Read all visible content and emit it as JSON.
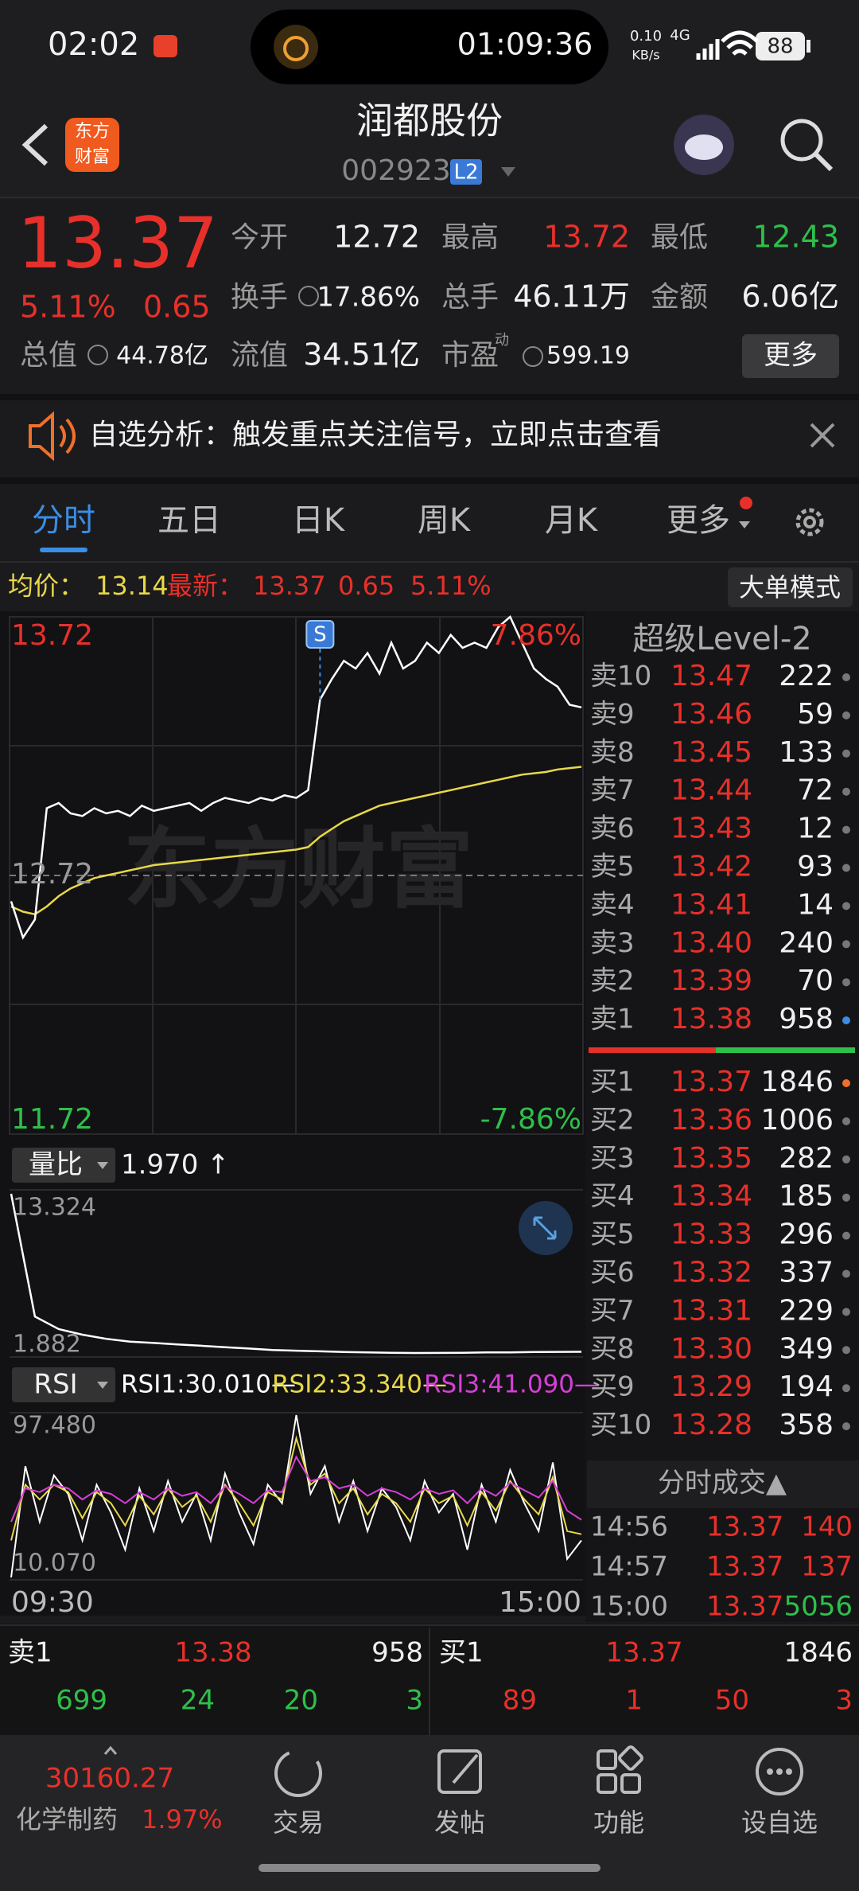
{
  "status_bar": {
    "time": "02:02",
    "timer": "01:09:36",
    "net_speed": "0.10",
    "net_unit": "KB/s",
    "network": "4G",
    "battery": "88"
  },
  "header": {
    "logo": [
      "东方",
      "财富"
    ],
    "title": "润都股份",
    "code": "002923",
    "badge": "L2"
  },
  "quote": {
    "price": "13.37",
    "change_pct": "5.11%",
    "change": "0.65",
    "stats": [
      {
        "label": "今开",
        "value": "12.72"
      },
      {
        "label": "最高",
        "value": "13.72"
      },
      {
        "label": "最低",
        "value": "12.43"
      },
      {
        "label": "换手",
        "value": "17.86%"
      },
      {
        "label": "总手",
        "value": "46.11万"
      },
      {
        "label": "金额",
        "value": "6.06亿"
      },
      {
        "label": "总值",
        "value": "44.78亿"
      },
      {
        "label": "流值",
        "value": "34.51亿"
      },
      {
        "label": "市盈",
        "value": "599.19",
        "superscript": "动"
      }
    ],
    "more_button": "更多"
  },
  "banner": {
    "text": "自选分析：触发重点关注信号，立即点击查看"
  },
  "tabs": [
    "分时",
    "五日",
    "日K",
    "周K",
    "月K",
    "更多"
  ],
  "info_bar": {
    "avg_label": "均价：",
    "avg": "13.14",
    "last_label": "最新：",
    "last": "13.37",
    "change": "0.65",
    "change_pct": "5.11%",
    "mode_button": "大单模式"
  },
  "price_chart": {
    "ylim": [
      11.72,
      13.72
    ],
    "yticks": [
      {
        "value": 13.72,
        "label": "13.72"
      },
      {
        "value": 12.72,
        "label": "12.72"
      },
      {
        "value": 11.72,
        "label": "11.72"
      }
    ],
    "pct_labels": [
      "7.86%",
      "-7.86%"
    ],
    "watermark": "东方财富",
    "signal_marker": "S",
    "price_color": "#ffffff",
    "avg_color": "#e8d84a",
    "price": [
      12.62,
      12.48,
      12.55,
      12.98,
      13.0,
      12.96,
      12.95,
      12.98,
      12.96,
      12.97,
      12.95,
      12.99,
      12.97,
      12.98,
      12.99,
      13.0,
      12.97,
      13.0,
      13.02,
      13.01,
      13.0,
      13.02,
      13.01,
      13.03,
      13.02,
      13.05,
      13.4,
      13.48,
      13.55,
      13.52,
      13.58,
      13.5,
      13.62,
      13.52,
      13.55,
      13.62,
      13.58,
      13.65,
      13.6,
      13.62,
      13.6,
      13.68,
      13.72,
      13.62,
      13.52,
      13.48,
      13.45,
      13.38,
      13.37
    ],
    "average": [
      12.6,
      12.58,
      12.57,
      12.6,
      12.64,
      12.67,
      12.69,
      12.71,
      12.72,
      12.73,
      12.74,
      12.75,
      12.76,
      12.765,
      12.77,
      12.775,
      12.78,
      12.785,
      12.79,
      12.795,
      12.8,
      12.805,
      12.81,
      12.815,
      12.82,
      12.83,
      12.87,
      12.9,
      12.93,
      12.95,
      12.97,
      12.99,
      13.0,
      13.01,
      13.02,
      13.03,
      13.04,
      13.05,
      13.06,
      13.07,
      13.08,
      13.09,
      13.1,
      13.11,
      13.115,
      13.12,
      13.13,
      13.135,
      13.14
    ]
  },
  "volume_ratio": {
    "selector": "量比",
    "value": "1.970 ↑",
    "ylim": [
      1.882,
      13.324
    ],
    "labels": [
      "13.324",
      "1.882"
    ],
    "color": "#ffffff",
    "values": [
      13.324,
      4.5,
      3.6,
      3.2,
      2.9,
      2.7,
      2.6,
      2.5,
      2.4,
      2.3,
      2.2,
      2.1,
      2.05,
      2.0,
      1.95,
      1.92,
      1.9,
      1.882,
      1.89,
      1.9,
      1.92,
      1.93,
      1.95,
      1.96,
      1.97
    ]
  },
  "rsi": {
    "selector": "RSI",
    "legend": [
      "RSI1:30.010—",
      "RSI2:33.340—",
      "RSI3:41.090—"
    ],
    "ylim": [
      10.07,
      97.48
    ],
    "labels": [
      "97.480",
      "10.070"
    ],
    "series": [
      {
        "color": "#ffffff",
        "values": [
          10.07,
          70,
          40,
          65,
          55,
          30,
          60,
          45,
          25,
          58,
          35,
          62,
          40,
          55,
          30,
          66,
          45,
          28,
          60,
          50,
          97.48,
          55,
          70,
          40,
          62,
          35,
          58,
          48,
          30,
          62,
          45,
          55,
          25,
          60,
          40,
          68,
          50,
          35,
          72,
          20,
          30.01
        ]
      },
      {
        "color": "#e8d84a",
        "values": [
          30,
          60,
          52,
          60,
          56,
          42,
          56,
          50,
          38,
          54,
          44,
          58,
          48,
          54,
          40,
          60,
          50,
          38,
          56,
          52,
          85,
          60,
          66,
          50,
          58,
          44,
          55,
          50,
          40,
          58,
          50,
          54,
          38,
          56,
          46,
          62,
          52,
          44,
          64,
          35,
          33.34
        ]
      },
      {
        "color": "#d63fd6",
        "values": [
          40,
          58,
          56,
          60,
          58,
          52,
          57,
          55,
          50,
          56,
          52,
          58,
          54,
          56,
          50,
          59,
          55,
          50,
          57,
          56,
          75,
          62,
          64,
          58,
          60,
          54,
          58,
          56,
          52,
          58,
          55,
          57,
          50,
          58,
          54,
          61,
          57,
          53,
          62,
          46,
          41.09
        ]
      }
    ]
  },
  "time_axis": [
    "09:30",
    "15:00"
  ],
  "order_book": {
    "title": "超级Level-2",
    "asks": [
      {
        "label": "卖10",
        "price": "13.47",
        "volume": "222"
      },
      {
        "label": "卖9",
        "price": "13.46",
        "volume": "59"
      },
      {
        "label": "卖8",
        "price": "13.45",
        "volume": "133"
      },
      {
        "label": "卖7",
        "price": "13.44",
        "volume": "72"
      },
      {
        "label": "卖6",
        "price": "13.43",
        "volume": "12"
      },
      {
        "label": "卖5",
        "price": "13.42",
        "volume": "93"
      },
      {
        "label": "卖4",
        "price": "13.41",
        "volume": "14"
      },
      {
        "label": "卖3",
        "price": "13.40",
        "volume": "240"
      },
      {
        "label": "卖2",
        "price": "13.39",
        "volume": "70"
      },
      {
        "label": "卖1",
        "price": "13.38",
        "volume": "958"
      }
    ],
    "bids": [
      {
        "label": "买1",
        "price": "13.37",
        "volume": "1846"
      },
      {
        "label": "买2",
        "price": "13.36",
        "volume": "1006"
      },
      {
        "label": "买3",
        "price": "13.35",
        "volume": "282"
      },
      {
        "label": "买4",
        "price": "13.34",
        "volume": "185"
      },
      {
        "label": "买5",
        "price": "13.33",
        "volume": "296"
      },
      {
        "label": "买6",
        "price": "13.32",
        "volume": "337"
      },
      {
        "label": "买7",
        "price": "13.31",
        "volume": "229"
      },
      {
        "label": "买8",
        "price": "13.30",
        "volume": "349"
      },
      {
        "label": "买9",
        "price": "13.29",
        "volume": "194"
      },
      {
        "label": "买10",
        "price": "13.28",
        "volume": "358"
      }
    ]
  },
  "trades": {
    "title": "分时成交▲",
    "rows": [
      [
        "14:56",
        "13.37",
        "140"
      ],
      [
        "14:57",
        "13.37",
        "137"
      ],
      [
        "15:00",
        "13.37",
        "5056"
      ]
    ]
  },
  "summary": {
    "ask": [
      "卖1",
      "13.38",
      "958"
    ],
    "bid": [
      "买1",
      "13.37",
      "1846"
    ],
    "ask_depth": [
      "699",
      "24",
      "20",
      "3"
    ],
    "bid_depth": [
      "89",
      "1",
      "50",
      "3"
    ]
  },
  "nav": {
    "index_value": "30160.27",
    "index_name": "化学制药",
    "index_pct": "1.97%",
    "items": [
      "交易",
      "发帖",
      "功能",
      "设自选"
    ]
  }
}
